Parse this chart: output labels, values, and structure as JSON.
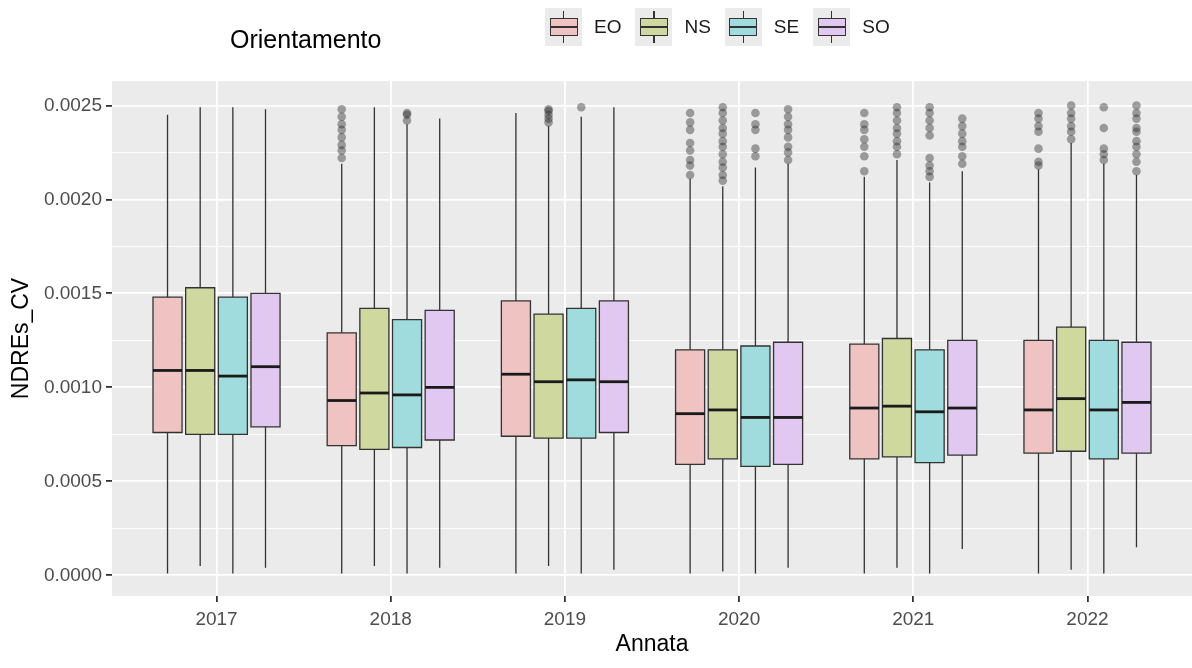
{
  "chart_data": {
    "type": "box",
    "xlabel": "Annata",
    "ylabel": "NDREs_CV",
    "legend_title": "Orientamento",
    "legend": "top",
    "grid": true,
    "categories": [
      "2017",
      "2018",
      "2019",
      "2020",
      "2021",
      "2022"
    ],
    "ylim": [
      -0.00011,
      0.00263
    ],
    "yticks": [
      {
        "value": 0,
        "label": "0.0000"
      },
      {
        "value": 0.00025,
        "label": null
      },
      {
        "value": 0.0005,
        "label": "0.0005"
      },
      {
        "value": 0.00075,
        "label": null
      },
      {
        "value": 0.001,
        "label": "0.0010"
      },
      {
        "value": 0.00125,
        "label": null
      },
      {
        "value": 0.0015,
        "label": "0.0015"
      },
      {
        "value": 0.00175,
        "label": null
      },
      {
        "value": 0.002,
        "label": "0.0020"
      },
      {
        "value": 0.00225,
        "label": null
      },
      {
        "value": 0.0025,
        "label": "0.0025"
      }
    ],
    "series": [
      {
        "name": "EO",
        "color": "#efc3c1",
        "boxes": [
          {
            "low": 1e-05,
            "q1": 0.00076,
            "median": 0.00109,
            "q3": 0.00148,
            "high": 0.00245
          },
          {
            "low": 1e-05,
            "q1": 0.00069,
            "median": 0.00093,
            "q3": 0.00129,
            "high": 0.00219,
            "outliers": [
              0.00248,
              0.00244,
              0.0024,
              0.00237,
              0.00233,
              0.00229,
              0.00226,
              0.00222
            ]
          },
          {
            "low": 1e-05,
            "q1": 0.00074,
            "median": 0.00107,
            "q3": 0.00146,
            "high": 0.00246
          },
          {
            "low": 1e-05,
            "q1": 0.00059,
            "median": 0.00086,
            "q3": 0.0012,
            "high": 0.00211,
            "outliers": [
              0.00246,
              0.00241,
              0.00237,
              0.0023,
              0.00226,
              0.00221,
              0.00218,
              0.00213
            ]
          },
          {
            "low": 1e-05,
            "q1": 0.00062,
            "median": 0.00089,
            "q3": 0.00123,
            "high": 0.00212,
            "outliers": [
              0.00246,
              0.0024,
              0.00237,
              0.00232,
              0.00228,
              0.00223,
              0.00215
            ]
          },
          {
            "low": 1e-05,
            "q1": 0.00065,
            "median": 0.00088,
            "q3": 0.00125,
            "high": 0.00216,
            "outliers": [
              0.00246,
              0.00243,
              0.00239,
              0.00236,
              0.00227,
              0.0022,
              0.00218
            ]
          }
        ]
      },
      {
        "name": "NS",
        "color": "#cfd99f",
        "boxes": [
          {
            "low": 5e-05,
            "q1": 0.00075,
            "median": 0.00109,
            "q3": 0.00153,
            "high": 0.00249
          },
          {
            "low": 5e-05,
            "q1": 0.00067,
            "median": 0.00097,
            "q3": 0.00142,
            "high": 0.00249
          },
          {
            "low": 5e-05,
            "q1": 0.00073,
            "median": 0.00103,
            "q3": 0.00139,
            "high": 0.00239,
            "outliers": [
              0.00248,
              0.00247,
              0.00245,
              0.00243,
              0.00241
            ]
          },
          {
            "low": 2e-05,
            "q1": 0.00062,
            "median": 0.00088,
            "q3": 0.0012,
            "high": 0.00207,
            "outliers": [
              0.00249,
              0.00246,
              0.00242,
              0.00238,
              0.00235,
              0.00231,
              0.00228,
              0.00224,
              0.0022,
              0.00217,
              0.00213,
              0.0021
            ]
          },
          {
            "low": 4e-05,
            "q1": 0.00063,
            "median": 0.0009,
            "q3": 0.00126,
            "high": 0.00221,
            "outliers": [
              0.00249,
              0.00246,
              0.00242,
              0.00238,
              0.00235,
              0.00231,
              0.00228,
              0.00224
            ]
          },
          {
            "low": 3e-05,
            "q1": 0.00066,
            "median": 0.00094,
            "q3": 0.00132,
            "high": 0.0023,
            "outliers": [
              0.0025,
              0.00246,
              0.00243,
              0.00239,
              0.00236,
              0.00232
            ]
          }
        ]
      },
      {
        "name": "SE",
        "color": "#a0dcdd",
        "boxes": [
          {
            "low": 1e-05,
            "q1": 0.00075,
            "median": 0.00106,
            "q3": 0.00148,
            "high": 0.00249
          },
          {
            "low": 1e-05,
            "q1": 0.00068,
            "median": 0.00096,
            "q3": 0.00136,
            "high": 0.0024,
            "outliers": [
              0.00246,
              0.00245,
              0.00242
            ]
          },
          {
            "low": 1e-05,
            "q1": 0.00073,
            "median": 0.00104,
            "q3": 0.00142,
            "high": 0.00244,
            "outliers": [
              0.00249
            ]
          },
          {
            "low": 1e-05,
            "q1": 0.00058,
            "median": 0.00084,
            "q3": 0.00122,
            "high": 0.00217,
            "outliers": [
              0.00246,
              0.0024,
              0.00237,
              0.00227,
              0.00223
            ]
          },
          {
            "low": 1e-05,
            "q1": 0.0006,
            "median": 0.00087,
            "q3": 0.0012,
            "high": 0.00209,
            "outliers": [
              0.00249,
              0.00246,
              0.00242,
              0.00238,
              0.00234,
              0.00222,
              0.00218,
              0.00215,
              0.00212
            ]
          },
          {
            "low": 1e-05,
            "q1": 0.00062,
            "median": 0.00088,
            "q3": 0.00125,
            "high": 0.00219,
            "outliers": [
              0.00249,
              0.00238,
              0.00227,
              0.00224,
              0.00221
            ]
          }
        ]
      },
      {
        "name": "SO",
        "color": "#e0c8f1",
        "boxes": [
          {
            "low": 4e-05,
            "q1": 0.00079,
            "median": 0.00111,
            "q3": 0.0015,
            "high": 0.00248
          },
          {
            "low": 4e-05,
            "q1": 0.00072,
            "median": 0.001,
            "q3": 0.00141,
            "high": 0.00243
          },
          {
            "low": 3e-05,
            "q1": 0.00076,
            "median": 0.00103,
            "q3": 0.00146,
            "high": 0.00249
          },
          {
            "low": 4e-05,
            "q1": 0.00059,
            "median": 0.00084,
            "q3": 0.00124,
            "high": 0.00219,
            "outliers": [
              0.00248,
              0.00244,
              0.0024,
              0.00237,
              0.00233,
              0.00228,
              0.00225,
              0.00221
            ]
          },
          {
            "low": 0.00014,
            "q1": 0.00064,
            "median": 0.00089,
            "q3": 0.00125,
            "high": 0.00215,
            "outliers": [
              0.00243,
              0.00239,
              0.00235,
              0.00231,
              0.00228,
              0.00223,
              0.00219
            ]
          },
          {
            "low": 0.00015,
            "q1": 0.00065,
            "median": 0.00092,
            "q3": 0.00124,
            "high": 0.00213,
            "outliers": [
              0.0025,
              0.00246,
              0.00243,
              0.00238,
              0.00236,
              0.00231,
              0.00228,
              0.00224,
              0.0022,
              0.00215
            ]
          }
        ]
      }
    ]
  }
}
